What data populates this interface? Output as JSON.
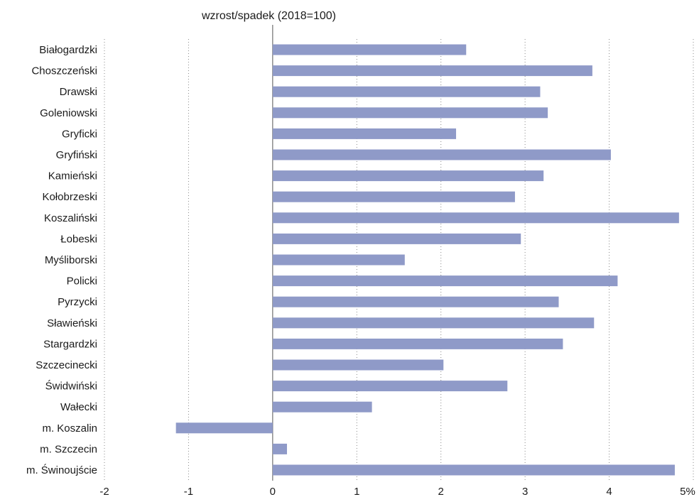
{
  "chart_data": {
    "type": "bar",
    "orientation": "horizontal",
    "title": "wzrost/spadek (2018=100)",
    "categories": [
      "Białogardzki",
      "Choszczeński",
      "Drawski",
      "Goleniowski",
      "Gryficki",
      "Gryfiński",
      "Kamieński",
      "Kołobrzeski",
      "Koszaliński",
      "Łobeski",
      "Myśliborski",
      "Policki",
      "Pyrzycki",
      "Sławieński",
      "Stargardzki",
      "Szczecinecki",
      "Świdwiński",
      "Wałecki",
      "m. Koszalin",
      "m. Szczecin",
      "m. Świnoujście"
    ],
    "values": [
      2.3,
      3.8,
      3.18,
      3.27,
      2.18,
      4.02,
      3.22,
      2.88,
      4.83,
      2.95,
      1.57,
      4.1,
      3.4,
      3.82,
      3.45,
      2.03,
      2.79,
      1.18,
      -1.15,
      0.17,
      4.78
    ],
    "xlim": [
      -2,
      5
    ],
    "xticks": [
      "-2",
      "-1",
      "0",
      "1",
      "2",
      "3",
      "4",
      "5%"
    ],
    "bar_color": "#8f9ac8",
    "grid": "vertical dotted"
  }
}
